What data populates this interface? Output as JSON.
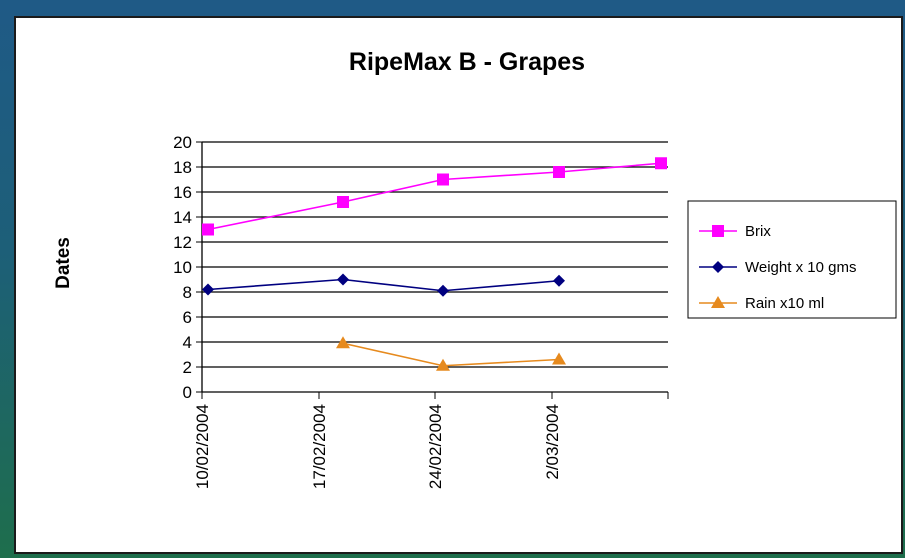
{
  "chart_data": {
    "type": "line",
    "title": "RipeMax B - Grapes",
    "xlabel": "",
    "ylabel": "Dates",
    "ylim": [
      0,
      20
    ],
    "yticks": [
      "0",
      "2",
      "4",
      "6",
      "8",
      "10",
      "12",
      "14",
      "16",
      "18",
      "20"
    ],
    "categories": [
      "10/02/2004",
      "17/02/2004",
      "24/02/2004",
      "2/03/2004",
      ""
    ],
    "grid": true,
    "legend_position": "right",
    "series": [
      {
        "name": "Brix",
        "color": "#ff00ff",
        "marker": "square",
        "values": [
          13.0,
          15.2,
          17.0,
          17.6,
          18.3
        ]
      },
      {
        "name": "Weight x 10 gms",
        "color": "#000080",
        "marker": "diamond",
        "values": [
          8.2,
          9.0,
          8.1,
          8.9,
          null
        ]
      },
      {
        "name": "Rain x10 ml",
        "color": "#e68a1e",
        "marker": "triangle",
        "values": [
          null,
          3.9,
          2.1,
          2.6,
          null
        ]
      }
    ]
  }
}
